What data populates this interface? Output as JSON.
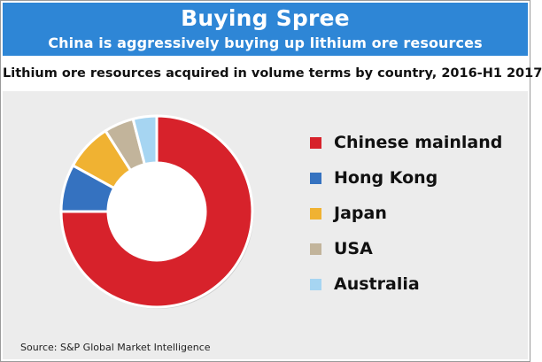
{
  "banner": {
    "title": "Buying Spree",
    "subtitle": "China is aggressively buying up lithium ore resources"
  },
  "source": "Source:  S&P Global Market Intelligence",
  "colors": {
    "banner_background": "#2e86d6",
    "panel_background": "#ececec"
  },
  "chart_data": {
    "type": "pie",
    "variant": "donut",
    "title": "Lithium ore resources acquired in volume terms by country, 2016-H1 2017",
    "unit": "share of volume (%)",
    "legend_position": "right",
    "categories": [
      "Chinese mainland",
      "Hong Kong",
      "Japan",
      "USA",
      "Australia"
    ],
    "values": [
      75,
      8,
      8,
      5,
      4
    ],
    "colors": [
      "#d7222b",
      "#3572c0",
      "#f0b232",
      "#c2b49b",
      "#a6d5f2"
    ]
  }
}
